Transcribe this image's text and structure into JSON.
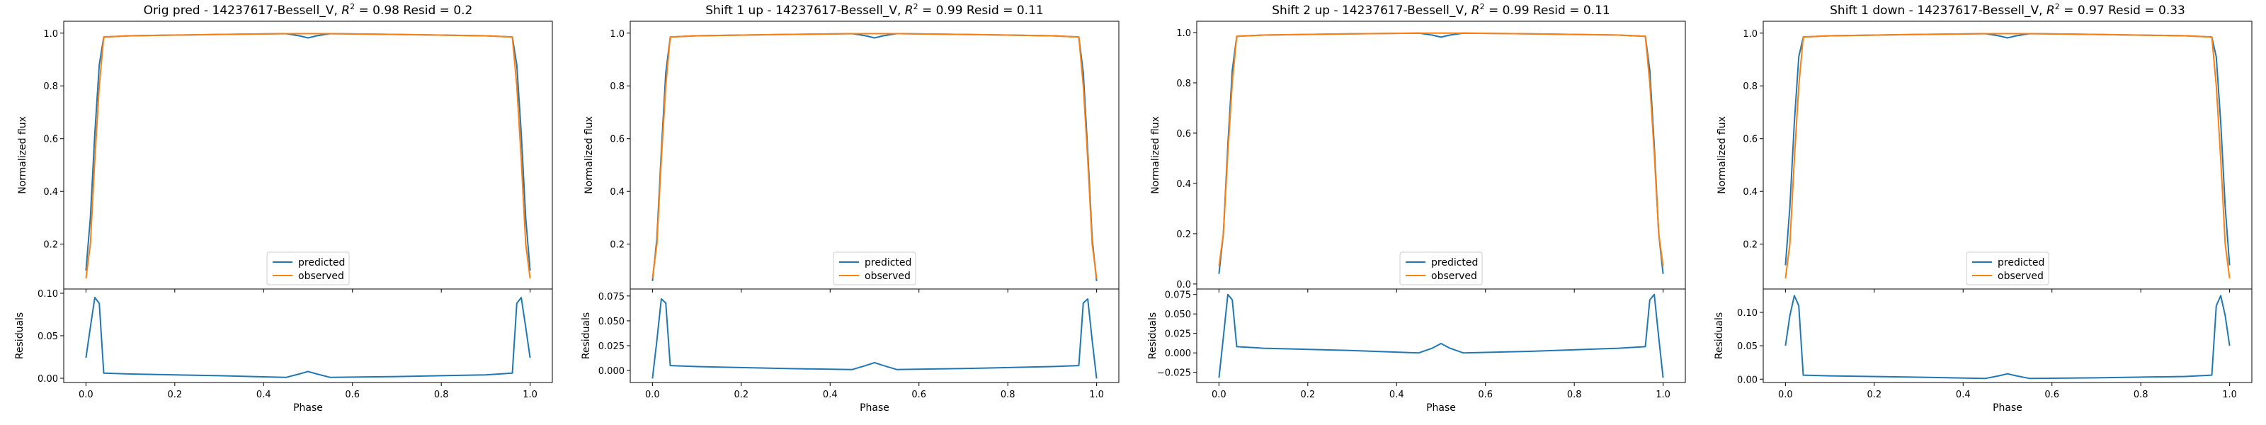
{
  "figure": {
    "background": "#ffffff"
  },
  "colors": {
    "predicted": "#1f77b4",
    "observed": "#ff7f0e"
  },
  "chart_data": [
    {
      "type": "line",
      "title_prefix": "Orig pred - 14237617-Bessell_V, ",
      "r2_value": "0.98",
      "resid_text": "Resid = 0.2",
      "ylabel": "Normalized flux",
      "resid_ylabel": "Residuals",
      "xlabel": "Phase",
      "xlim": [
        -0.05,
        1.05
      ],
      "ylim": [
        0.03,
        1.045
      ],
      "resid_ylim": [
        -0.005,
        0.105
      ],
      "xticks": [
        0.0,
        0.2,
        0.4,
        0.6,
        0.8,
        1.0
      ],
      "yticks": [
        0.2,
        0.4,
        0.6,
        0.8,
        1.0
      ],
      "resid_yticks": [
        0.0,
        0.05,
        0.1
      ],
      "resid_tick_labels": [
        "0.00",
        "0.05",
        "0.10"
      ],
      "legend": {
        "position": "lower center"
      },
      "series": [
        {
          "name": "predicted",
          "x": [
            0.0,
            0.01,
            0.02,
            0.03,
            0.04,
            0.1,
            0.3,
            0.45,
            0.48,
            0.5,
            0.52,
            0.55,
            0.7,
            0.9,
            0.96,
            0.97,
            0.98,
            0.99,
            1.0
          ],
          "y": [
            0.1,
            0.3,
            0.62,
            0.88,
            0.985,
            0.99,
            0.995,
            0.998,
            0.99,
            0.982,
            0.99,
            0.998,
            0.995,
            0.99,
            0.985,
            0.88,
            0.62,
            0.3,
            0.1
          ]
        },
        {
          "name": "observed",
          "x": [
            0.0,
            0.01,
            0.02,
            0.03,
            0.04,
            0.1,
            0.3,
            0.45,
            0.48,
            0.5,
            0.52,
            0.55,
            0.7,
            0.9,
            0.96,
            0.97,
            0.98,
            0.99,
            1.0
          ],
          "y": [
            0.07,
            0.2,
            0.52,
            0.8,
            0.985,
            0.99,
            0.995,
            0.998,
            0.998,
            0.998,
            0.998,
            0.998,
            0.995,
            0.99,
            0.985,
            0.8,
            0.52,
            0.2,
            0.07
          ]
        }
      ],
      "residuals": {
        "x": [
          0.0,
          0.01,
          0.02,
          0.03,
          0.04,
          0.1,
          0.3,
          0.45,
          0.48,
          0.5,
          0.52,
          0.55,
          0.7,
          0.9,
          0.96,
          0.97,
          0.98,
          0.99,
          1.0
        ],
        "y": [
          0.024,
          0.06,
          0.095,
          0.088,
          0.006,
          0.005,
          0.003,
          0.001,
          0.005,
          0.008,
          0.005,
          0.001,
          0.002,
          0.004,
          0.006,
          0.088,
          0.095,
          0.06,
          0.024
        ]
      }
    },
    {
      "type": "line",
      "title_prefix": "Shift 1 up - 14237617-Bessell_V, ",
      "r2_value": "0.99",
      "resid_text": "Resid = 0.11",
      "ylabel": "Normalized flux",
      "resid_ylabel": "Residuals",
      "xlabel": "Phase",
      "xlim": [
        -0.05,
        1.05
      ],
      "ylim": [
        0.03,
        1.045
      ],
      "resid_ylim": [
        -0.012,
        0.082
      ],
      "xticks": [
        0.0,
        0.2,
        0.4,
        0.6,
        0.8,
        1.0
      ],
      "yticks": [
        0.2,
        0.4,
        0.6,
        0.8,
        1.0
      ],
      "resid_yticks": [
        0.0,
        0.025,
        0.05,
        0.075
      ],
      "resid_tick_labels": [
        "0.000",
        "0.025",
        "0.050",
        "0.075"
      ],
      "legend": {
        "position": "lower center"
      },
      "series": [
        {
          "name": "predicted",
          "x": [
            0.0,
            0.01,
            0.02,
            0.03,
            0.04,
            0.1,
            0.3,
            0.45,
            0.48,
            0.5,
            0.52,
            0.55,
            0.7,
            0.9,
            0.96,
            0.97,
            0.98,
            0.99,
            1.0
          ],
          "y": [
            0.06,
            0.22,
            0.55,
            0.85,
            0.985,
            0.99,
            0.995,
            0.998,
            0.99,
            0.982,
            0.99,
            0.998,
            0.995,
            0.99,
            0.985,
            0.85,
            0.55,
            0.22,
            0.06
          ]
        },
        {
          "name": "observed",
          "x": [
            0.0,
            0.01,
            0.02,
            0.03,
            0.04,
            0.1,
            0.3,
            0.45,
            0.48,
            0.5,
            0.52,
            0.55,
            0.7,
            0.9,
            0.96,
            0.97,
            0.98,
            0.99,
            1.0
          ],
          "y": [
            0.07,
            0.2,
            0.52,
            0.8,
            0.985,
            0.99,
            0.995,
            0.998,
            0.998,
            0.998,
            0.998,
            0.998,
            0.995,
            0.99,
            0.985,
            0.8,
            0.52,
            0.2,
            0.07
          ]
        }
      ],
      "residuals": {
        "x": [
          0.0,
          0.01,
          0.02,
          0.03,
          0.04,
          0.1,
          0.3,
          0.45,
          0.48,
          0.5,
          0.52,
          0.55,
          0.7,
          0.9,
          0.96,
          0.97,
          0.98,
          0.99,
          1.0
        ],
        "y": [
          -0.008,
          0.03,
          0.072,
          0.068,
          0.005,
          0.004,
          0.002,
          0.001,
          0.005,
          0.008,
          0.005,
          0.001,
          0.002,
          0.004,
          0.005,
          0.068,
          0.072,
          0.03,
          -0.008
        ]
      }
    },
    {
      "type": "line",
      "title_prefix": "Shift 2 up - 14237617-Bessell_V, ",
      "r2_value": "0.99",
      "resid_text": "Resid = 0.11",
      "ylabel": "Normalized flux",
      "resid_ylabel": "Residuals",
      "xlabel": "Phase",
      "xlim": [
        -0.05,
        1.05
      ],
      "ylim": [
        -0.02,
        1.045
      ],
      "resid_ylim": [
        -0.038,
        0.082
      ],
      "xticks": [
        0.0,
        0.2,
        0.4,
        0.6,
        0.8,
        1.0
      ],
      "yticks": [
        0.0,
        0.2,
        0.4,
        0.6,
        0.8,
        1.0
      ],
      "resid_yticks": [
        -0.025,
        0.0,
        0.025,
        0.05,
        0.075
      ],
      "resid_tick_labels": [
        "−0.025",
        "0.000",
        "0.025",
        "0.050",
        "0.075"
      ],
      "legend": {
        "position": "lower center"
      },
      "series": [
        {
          "name": "predicted",
          "x": [
            0.0,
            0.01,
            0.02,
            0.03,
            0.04,
            0.1,
            0.3,
            0.45,
            0.48,
            0.5,
            0.52,
            0.55,
            0.7,
            0.9,
            0.96,
            0.97,
            0.98,
            0.99,
            1.0
          ],
          "y": [
            0.04,
            0.2,
            0.55,
            0.85,
            0.985,
            0.99,
            0.995,
            0.998,
            0.99,
            0.982,
            0.99,
            0.998,
            0.995,
            0.99,
            0.985,
            0.85,
            0.55,
            0.2,
            0.04
          ]
        },
        {
          "name": "observed",
          "x": [
            0.0,
            0.01,
            0.02,
            0.03,
            0.04,
            0.1,
            0.3,
            0.45,
            0.48,
            0.5,
            0.52,
            0.55,
            0.7,
            0.9,
            0.96,
            0.97,
            0.98,
            0.99,
            1.0
          ],
          "y": [
            0.07,
            0.2,
            0.52,
            0.8,
            0.985,
            0.99,
            0.995,
            0.998,
            0.998,
            0.998,
            0.998,
            0.998,
            0.995,
            0.99,
            0.985,
            0.8,
            0.52,
            0.2,
            0.07
          ]
        }
      ],
      "residuals": {
        "x": [
          0.0,
          0.01,
          0.02,
          0.03,
          0.04,
          0.1,
          0.3,
          0.45,
          0.48,
          0.5,
          0.52,
          0.55,
          0.7,
          0.9,
          0.96,
          0.97,
          0.98,
          0.99,
          1.0
        ],
        "y": [
          -0.032,
          0.02,
          0.075,
          0.068,
          0.008,
          0.006,
          0.003,
          0.0,
          0.006,
          0.012,
          0.006,
          0.0,
          0.002,
          0.006,
          0.008,
          0.068,
          0.075,
          0.02,
          -0.032
        ]
      }
    },
    {
      "type": "line",
      "title_prefix": "Shift 1 down - 14237617-Bessell_V, ",
      "r2_value": "0.97",
      "resid_text": "Resid = 0.33",
      "ylabel": "Normalized flux",
      "resid_ylabel": "Residuals",
      "xlabel": "Phase",
      "xlim": [
        -0.05,
        1.05
      ],
      "ylim": [
        0.03,
        1.045
      ],
      "resid_ylim": [
        -0.005,
        0.135
      ],
      "xticks": [
        0.0,
        0.2,
        0.4,
        0.6,
        0.8,
        1.0
      ],
      "yticks": [
        0.2,
        0.4,
        0.6,
        0.8,
        1.0
      ],
      "resid_yticks": [
        0.0,
        0.05,
        0.1
      ],
      "resid_tick_labels": [
        "0.00",
        "0.05",
        "0.10"
      ],
      "legend": {
        "position": "lower center"
      },
      "series": [
        {
          "name": "predicted",
          "x": [
            0.0,
            0.01,
            0.02,
            0.03,
            0.04,
            0.1,
            0.3,
            0.45,
            0.48,
            0.5,
            0.52,
            0.55,
            0.7,
            0.9,
            0.96,
            0.97,
            0.98,
            0.99,
            1.0
          ],
          "y": [
            0.12,
            0.34,
            0.66,
            0.91,
            0.985,
            0.99,
            0.995,
            0.998,
            0.99,
            0.982,
            0.99,
            0.998,
            0.995,
            0.99,
            0.985,
            0.91,
            0.66,
            0.34,
            0.12
          ]
        },
        {
          "name": "observed",
          "x": [
            0.0,
            0.01,
            0.02,
            0.03,
            0.04,
            0.1,
            0.3,
            0.45,
            0.48,
            0.5,
            0.52,
            0.55,
            0.7,
            0.9,
            0.96,
            0.97,
            0.98,
            0.99,
            1.0
          ],
          "y": [
            0.07,
            0.2,
            0.52,
            0.8,
            0.985,
            0.99,
            0.995,
            0.998,
            0.998,
            0.998,
            0.998,
            0.998,
            0.995,
            0.99,
            0.985,
            0.8,
            0.52,
            0.2,
            0.07
          ]
        }
      ],
      "residuals": {
        "x": [
          0.0,
          0.01,
          0.02,
          0.03,
          0.04,
          0.1,
          0.3,
          0.45,
          0.48,
          0.5,
          0.52,
          0.55,
          0.7,
          0.9,
          0.96,
          0.97,
          0.98,
          0.99,
          1.0
        ],
        "y": [
          0.05,
          0.095,
          0.125,
          0.11,
          0.006,
          0.005,
          0.003,
          0.001,
          0.005,
          0.008,
          0.005,
          0.001,
          0.002,
          0.004,
          0.006,
          0.11,
          0.125,
          0.095,
          0.05
        ]
      }
    }
  ]
}
